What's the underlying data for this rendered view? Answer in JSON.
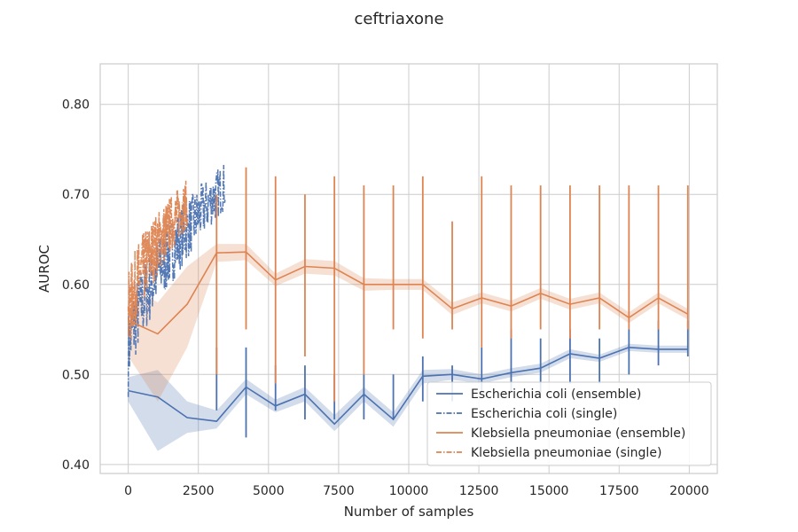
{
  "chart_data": {
    "type": "line",
    "title": "ceftriaxone",
    "xlabel": "Number of samples",
    "ylabel": "AUROC",
    "xlim": [
      -1000,
      21000
    ],
    "ylim": [
      0.39,
      0.845
    ],
    "xticks": [
      0,
      2500,
      5000,
      7500,
      10000,
      12500,
      15000,
      17500,
      20000
    ],
    "xtick_labels": [
      "0",
      "2500",
      "5000",
      "7500",
      "10000",
      "12500",
      "15000",
      "17500",
      "20000"
    ],
    "yticks": [
      0.4,
      0.5,
      0.6,
      0.7,
      0.8
    ],
    "ytick_labels": [
      "0.40",
      "0.50",
      "0.60",
      "0.70",
      "0.80"
    ],
    "grid": true,
    "legend_position": "lower-right",
    "colors": {
      "blue": "#4c72b0",
      "orange": "#dd8452"
    },
    "series": [
      {
        "name": "Escherichia coli (ensemble)",
        "color": "#4c72b0",
        "style": "solid",
        "x": [
          0,
          1050,
          2100,
          3150,
          4200,
          5250,
          6300,
          7350,
          8400,
          9450,
          10500,
          11550,
          12600,
          13650,
          14700,
          15750,
          16800,
          17850,
          18900,
          19950
        ],
        "y": [
          0.482,
          0.475,
          0.452,
          0.448,
          0.486,
          0.465,
          0.478,
          0.445,
          0.478,
          0.45,
          0.498,
          0.5,
          0.495,
          0.502,
          0.507,
          0.523,
          0.518,
          0.53,
          0.528,
          0.528
        ],
        "band_upper": [
          0.497,
          0.505,
          0.47,
          0.46,
          0.495,
          0.472,
          0.486,
          0.455,
          0.486,
          0.458,
          0.505,
          0.506,
          0.5,
          0.507,
          0.512,
          0.528,
          0.522,
          0.534,
          0.532,
          0.532
        ],
        "band_lower": [
          0.47,
          0.415,
          0.435,
          0.44,
          0.478,
          0.458,
          0.47,
          0.437,
          0.47,
          0.442,
          0.49,
          0.494,
          0.49,
          0.497,
          0.502,
          0.518,
          0.514,
          0.526,
          0.524,
          0.524
        ]
      },
      {
        "name": "Escherichia coli (single)",
        "color": "#4c72b0",
        "style": "dashdot",
        "x_range": [
          0,
          3450
        ],
        "y_start": 0.52,
        "y_end": 0.71,
        "y_min": 0.455,
        "y_max": 0.77
      },
      {
        "name": "Klebsiella pneumoniae (ensemble)",
        "color": "#dd8452",
        "style": "solid",
        "x": [
          0,
          1050,
          2100,
          3150,
          4200,
          5250,
          6300,
          7350,
          8400,
          9450,
          10500,
          11550,
          12600,
          13650,
          14700,
          15750,
          16800,
          17850,
          18900,
          19950
        ],
        "y": [
          0.56,
          0.545,
          0.578,
          0.635,
          0.636,
          0.605,
          0.62,
          0.618,
          0.6,
          0.6,
          0.6,
          0.573,
          0.585,
          0.576,
          0.59,
          0.578,
          0.585,
          0.563,
          0.585,
          0.567
        ],
        "band_upper": [
          0.6,
          0.58,
          0.62,
          0.645,
          0.645,
          0.612,
          0.628,
          0.626,
          0.607,
          0.606,
          0.606,
          0.58,
          0.591,
          0.582,
          0.596,
          0.584,
          0.591,
          0.569,
          0.591,
          0.573
        ],
        "band_lower": [
          0.52,
          0.47,
          0.53,
          0.625,
          0.627,
          0.598,
          0.612,
          0.61,
          0.593,
          0.594,
          0.594,
          0.566,
          0.579,
          0.57,
          0.584,
          0.572,
          0.579,
          0.557,
          0.579,
          0.561
        ]
      },
      {
        "name": "Klebsiella pneumoniae (single)",
        "color": "#dd8452",
        "style": "dashdot",
        "x_range": [
          0,
          2100
        ],
        "y_start": 0.56,
        "y_end": 0.69,
        "y_min": 0.45,
        "y_max": 0.77
      }
    ],
    "ensemble_spikes": [
      {
        "x": 3150,
        "blue": [
          0.46,
          0.53
        ],
        "orange": [
          0.5,
          0.7
        ]
      },
      {
        "x": 4200,
        "blue": [
          0.43,
          0.53
        ],
        "orange": [
          0.55,
          0.73
        ]
      },
      {
        "x": 5250,
        "blue": [
          0.46,
          0.51
        ],
        "orange": [
          0.49,
          0.72
        ]
      },
      {
        "x": 6300,
        "blue": [
          0.45,
          0.51
        ],
        "orange": [
          0.52,
          0.7
        ]
      },
      {
        "x": 7350,
        "blue": [
          0.45,
          0.5
        ],
        "orange": [
          0.47,
          0.72
        ]
      },
      {
        "x": 8400,
        "blue": [
          0.45,
          0.5
        ],
        "orange": [
          0.5,
          0.71
        ]
      },
      {
        "x": 9450,
        "blue": [
          0.45,
          0.5
        ],
        "orange": [
          0.55,
          0.71
        ]
      },
      {
        "x": 10500,
        "blue": [
          0.47,
          0.52
        ],
        "orange": [
          0.54,
          0.72
        ]
      },
      {
        "x": 11550,
        "blue": [
          0.47,
          0.51
        ],
        "orange": [
          0.55,
          0.67
        ]
      },
      {
        "x": 12600,
        "blue": [
          0.48,
          0.53
        ],
        "orange": [
          0.53,
          0.72
        ]
      },
      {
        "x": 13650,
        "blue": [
          0.48,
          0.55
        ],
        "orange": [
          0.54,
          0.71
        ]
      },
      {
        "x": 14700,
        "blue": [
          0.48,
          0.54
        ],
        "orange": [
          0.55,
          0.71
        ]
      },
      {
        "x": 15750,
        "blue": [
          0.49,
          0.55
        ],
        "orange": [
          0.54,
          0.71
        ]
      },
      {
        "x": 16800,
        "blue": [
          0.49,
          0.54
        ],
        "orange": [
          0.55,
          0.71
        ]
      },
      {
        "x": 17850,
        "blue": [
          0.5,
          0.55
        ],
        "orange": [
          0.55,
          0.71
        ]
      },
      {
        "x": 18900,
        "blue": [
          0.51,
          0.56
        ],
        "orange": [
          0.55,
          0.71
        ]
      },
      {
        "x": 19950,
        "blue": [
          0.52,
          0.56
        ],
        "orange": [
          0.55,
          0.71
        ]
      }
    ]
  }
}
